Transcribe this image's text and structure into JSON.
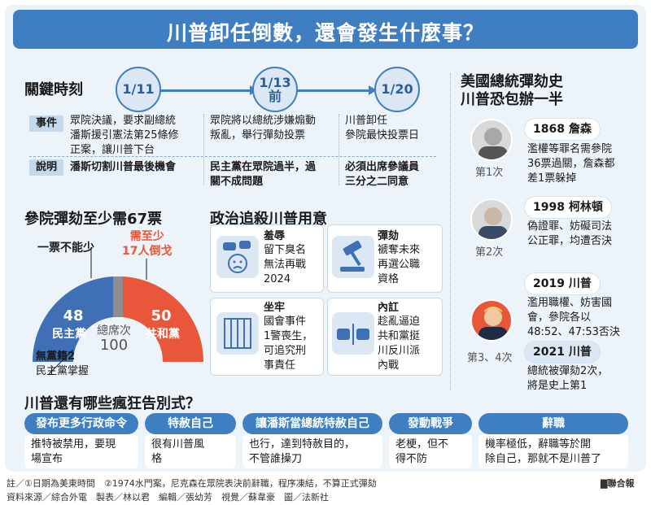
{
  "title": "川普卸任倒數，還會發生什麼事？",
  "timeline": {
    "heading": "關鍵時刻",
    "dates": [
      "1/11",
      "1/13\n前",
      "1/20"
    ],
    "tags": {
      "event": "事件",
      "note": "說明"
    },
    "events": [
      "眾院決議，要求副總統\n潘斯援引憲法第25條修\n正案，讓川普下台",
      "眾院將以總統涉嫌煽動\n叛亂，舉行彈劾投票",
      "川普卸任\n參院最快投票日"
    ],
    "notes": [
      "潘斯切割川普最後機會",
      "民主黨在眾院過半，過\n關不成問題",
      "必須出席參議員\n三分之二同意"
    ]
  },
  "senate": {
    "heading": "參院彈劾至少需67票",
    "one_vote": "一票不能少",
    "need": "需至少\n17人倒戈",
    "dem_count": "48",
    "dem_label": "民主黨",
    "rep_count": "50",
    "rep_label": "共和黨",
    "total_label": "總席次",
    "total": "100",
    "indep": "無黨籍2",
    "indep_note": "民主黨掌握",
    "colors": {
      "dem": "#3f6fb5",
      "rep": "#e9573a",
      "indep": "#8e8e8e"
    }
  },
  "motives": {
    "heading": "政治追殺川普用意",
    "items": [
      {
        "title": "羞辱",
        "body": "留下臭名\n無法再戰\n2024",
        "icon": "speech-sad-face-icon"
      },
      {
        "title": "彈劾",
        "body": "褫奪未來\n再選公職\n資格",
        "icon": "gavel-icon"
      },
      {
        "title": "坐牢",
        "body": "國會事件\n1警喪生，\n可追究刑\n事責任",
        "icon": "jail-cell-icon"
      },
      {
        "title": "內訌",
        "body": "趁亂逼迫\n共和黨挺\n川反川派\n內戰",
        "icon": "fist-clash-icon"
      }
    ]
  },
  "history": {
    "heading": "美國總統彈劾史\n川普恐包辦一半",
    "items": [
      {
        "label": "1868 詹森",
        "body": "濫權等罪名需參院\n36票過關，詹森都\n差1票躲掉",
        "count": "第1次"
      },
      {
        "label": "1998 柯林頓",
        "body": "偽證罪、妨礙司法\n公正罪，均遭否決",
        "count": "第2次"
      },
      {
        "label": "2019 川普",
        "body": "濫用職權、妨害國\n會，參院各以\n48:52、47:53否決",
        "count": "第3、4次"
      },
      {
        "label": "2021 川普",
        "body": "總統被彈劾2次，\n將是史上第1",
        "count": ""
      }
    ]
  },
  "tricks": {
    "heading": "川普還有哪些瘋狂告別式？",
    "items": [
      {
        "title": "發布更多行政命令",
        "body": "推特被禁用，要現\n場宣布"
      },
      {
        "title": "特赦自己",
        "body": "很有川普風\n格"
      },
      {
        "title": "讓潘斯當總統特赦自己",
        "body": "也行，達到特赦目的，\n不管誰操刀"
      },
      {
        "title": "發動戰爭",
        "body": "老梗，但不\n得不防"
      },
      {
        "title": "辭職",
        "body": "機率極低，辭職等於開\n除自己，那就不是川普了"
      }
    ]
  },
  "footer": {
    "note": "註／①日期為美東時間　②1974水門案，尼克森在眾院表決前辭職，程序凍結，不算正式彈劾",
    "credits": "資料來源／綜合外電　製表／林以君　編輯／張幼芳　視覺／蘇韋豪　圖／法新社",
    "brand": "▇聯合報"
  }
}
